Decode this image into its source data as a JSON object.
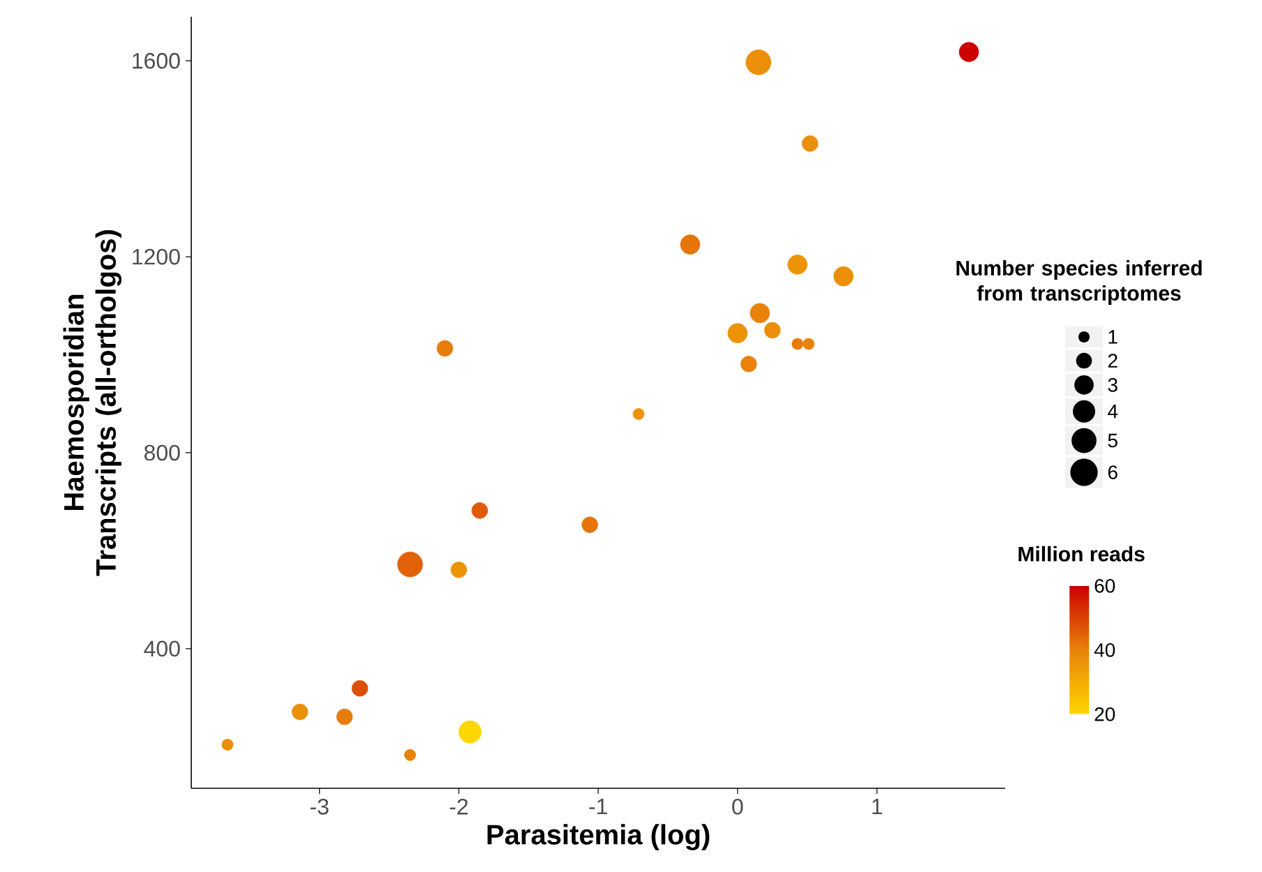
{
  "chart_data": {
    "type": "bubble",
    "xlabel": "Parasitemia (log)",
    "ylabel": "Haemosporidian Transcripts (all-ortholgos)",
    "legend_title": "Number species inferred from transcriptomes",
    "clabel": "Million reads",
    "x": [
      -3.66,
      -3.14,
      -2.82,
      -2.71,
      -2.35,
      -2.35,
      -2.0,
      -1.92,
      -1.85,
      -1.06,
      -2.1,
      -0.71,
      -0.34,
      0.15,
      0.52,
      0.43,
      0.76,
      0.16,
      0.0,
      0.25,
      0.43,
      0.51,
      0.08,
      1.66
    ],
    "values": [
      204,
      271,
      261,
      319,
      183,
      572,
      561,
      230,
      682,
      653,
      1013,
      879,
      1225,
      1597,
      1431,
      1184,
      1160,
      1085,
      1044,
      1050,
      1022,
      1022,
      981,
      1618
    ],
    "sizes": [
      1,
      2,
      2,
      2,
      1,
      5,
      2,
      4,
      2,
      2,
      2,
      1,
      3,
      5,
      2,
      3,
      3,
      3,
      3,
      2,
      1,
      1,
      2,
      3
    ],
    "cvalues": [
      37,
      37,
      41,
      48,
      40,
      45,
      36,
      20,
      46,
      42,
      41,
      36,
      42,
      37,
      37,
      36,
      37,
      40,
      36,
      37,
      41,
      40,
      40,
      60
    ],
    "size_legend": [
      {
        "value": 1,
        "label": "1"
      },
      {
        "value": 2,
        "label": "2"
      },
      {
        "value": 3,
        "label": "3"
      },
      {
        "value": 4,
        "label": "4"
      },
      {
        "value": 5,
        "label": "5"
      },
      {
        "value": 6,
        "label": "6"
      }
    ],
    "clim": [
      20,
      60
    ],
    "cticks": [
      20,
      40,
      60
    ],
    "xlim": [
      -3.92,
      1.92
    ],
    "ylim": [
      115,
      1690
    ],
    "xticks": [
      -3,
      -2,
      -1,
      0,
      1
    ],
    "yticks": [
      400,
      800,
      1200,
      1600
    ]
  }
}
